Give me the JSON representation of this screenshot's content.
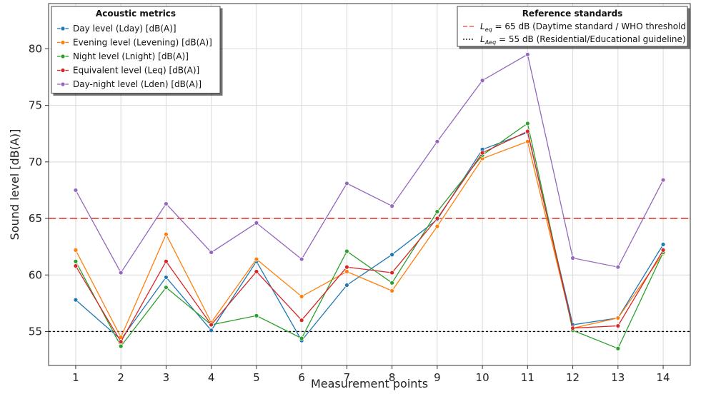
{
  "chart_data": {
    "type": "line",
    "xlabel": "Measurement points",
    "ylabel": "Sound level [dB(A)]",
    "categories": [
      "1",
      "2",
      "3",
      "4",
      "5",
      "6",
      "7",
      "8",
      "9",
      "10",
      "11",
      "12",
      "13",
      "14"
    ],
    "ylim": [
      52,
      84
    ],
    "yticks": [
      55,
      60,
      65,
      70,
      75,
      80
    ],
    "grid": true,
    "series": [
      {
        "name": "Day level (Lday) [dB(A)]",
        "color": "#1f77b4",
        "values": [
          57.8,
          54.3,
          59.8,
          55.1,
          61.2,
          54.2,
          59.1,
          61.8,
          64.9,
          71.1,
          72.6,
          55.6,
          56.2,
          62.7
        ]
      },
      {
        "name": "Evening level (Levening) [dB(A)]",
        "color": "#ff7f0e",
        "values": [
          62.2,
          54.5,
          63.6,
          55.8,
          61.4,
          58.1,
          60.3,
          58.6,
          64.3,
          70.3,
          71.8,
          55.3,
          56.2,
          61.9
        ]
      },
      {
        "name": "Night level (Lnight) [dB(A)]",
        "color": "#2ca02c",
        "values": [
          61.2,
          53.7,
          58.9,
          55.6,
          56.4,
          54.4,
          62.1,
          59.3,
          65.6,
          70.6,
          73.4,
          55.1,
          53.5,
          62.0
        ]
      },
      {
        "name": "Equivalent level (Leq) [dB(A)]",
        "color": "#d62728",
        "values": [
          60.8,
          54.1,
          61.2,
          55.6,
          60.3,
          56.0,
          60.7,
          60.2,
          65.0,
          70.8,
          72.7,
          55.3,
          55.5,
          62.2
        ]
      },
      {
        "name": "Day-night level (Lden) [dB(A)]",
        "color": "#9467bd",
        "values": [
          67.5,
          60.2,
          66.3,
          62.0,
          64.6,
          61.4,
          68.1,
          66.1,
          71.8,
          77.2,
          79.5,
          61.5,
          60.7,
          68.4
        ]
      }
    ],
    "reference_lines": [
      {
        "value": 65,
        "color": "#e8413a",
        "style": "dashed",
        "label_symbol": "L",
        "label_sub": "eq",
        "label_rest": " = 65 dB (Daytime standard / WHO threshold"
      },
      {
        "value": 55,
        "color": "#000000",
        "style": "dotted",
        "label_symbol": "L",
        "label_sub": "Aeq",
        "label_rest": " = 55 dB (Residential/Educational guideline)"
      }
    ],
    "legend_metrics": {
      "title": "Acoustic metrics",
      "placement": "top-left"
    },
    "legend_reference": {
      "title": "Reference standards",
      "placement": "top-right"
    }
  }
}
